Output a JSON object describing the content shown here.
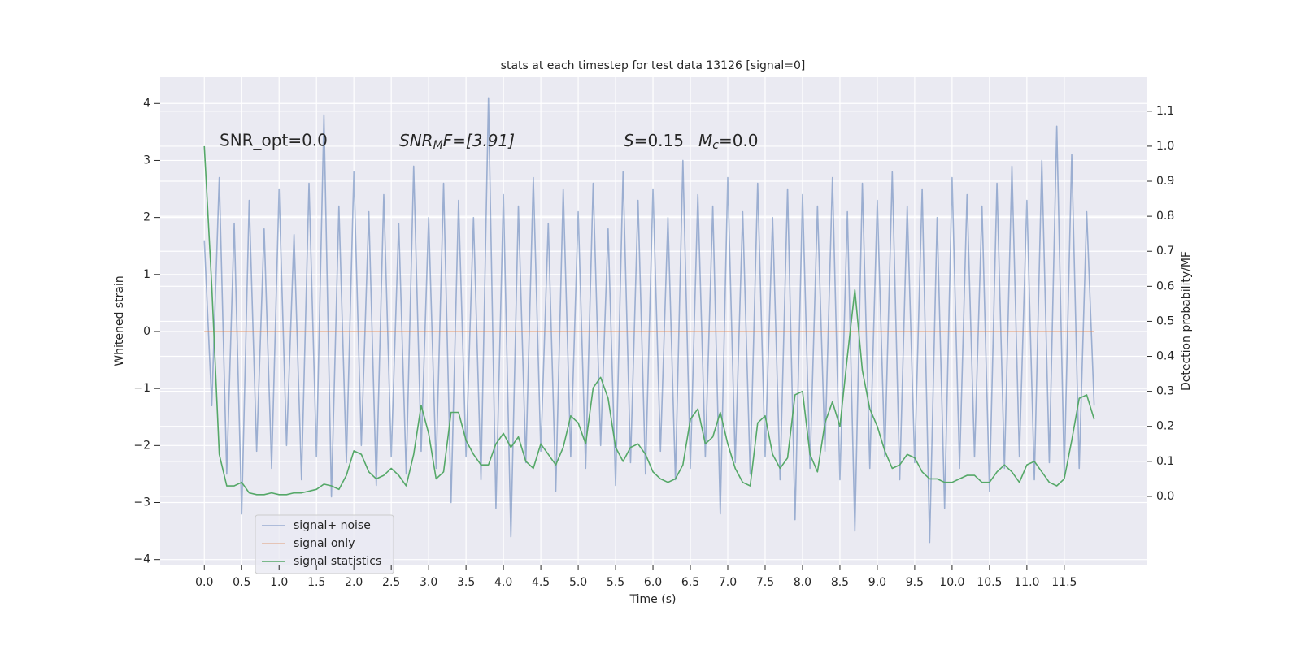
{
  "chart_data": {
    "type": "line",
    "title": "stats at each timestep for test data 13126 [signal=0]",
    "xlabel": "Time (s)",
    "ylabel": "Whitened strain",
    "y2label": "Detection probability/MF",
    "annotations": [
      [
        "SNR_opt=0.0"
      ],
      [
        "SNR",
        "M",
        "F=[3.91]"
      ],
      [
        "S",
        "=0.15"
      ],
      [
        "M",
        "c",
        "=0.0"
      ]
    ],
    "x": [
      0,
      0.1,
      0.2,
      0.3,
      0.4,
      0.5,
      0.6,
      0.7,
      0.8,
      0.9,
      1,
      1.1,
      1.2,
      1.3,
      1.4,
      1.5,
      1.6,
      1.7,
      1.8,
      1.9,
      2,
      2.1,
      2.2,
      2.3,
      2.4,
      2.5,
      2.6,
      2.7,
      2.8,
      2.9,
      3,
      3.1,
      3.2,
      3.3,
      3.4,
      3.5,
      3.6,
      3.7,
      3.8,
      3.9,
      4,
      4.1,
      4.2,
      4.3,
      4.4,
      4.5,
      4.6,
      4.7,
      4.8,
      4.9,
      5,
      5.1,
      5.2,
      5.3,
      5.4,
      5.5,
      5.6,
      5.7,
      5.8,
      5.9,
      6,
      6.1,
      6.2,
      6.3,
      6.4,
      6.5,
      6.6,
      6.7,
      6.8,
      6.9,
      7,
      7.1,
      7.2,
      7.3,
      7.4,
      7.5,
      7.6,
      7.7,
      7.8,
      7.9,
      8,
      8.1,
      8.2,
      8.3,
      8.4,
      8.5,
      8.6,
      8.7,
      8.8,
      8.9,
      9,
      9.1,
      9.2,
      9.3,
      9.4,
      9.5,
      9.6,
      9.7,
      9.8,
      9.9,
      10,
      10.1,
      10.2,
      10.3,
      10.4,
      10.5,
      10.6,
      10.7,
      10.8,
      10.9,
      11,
      11.1,
      11.2,
      11.3,
      11.4,
      11.5,
      11.6,
      11.7,
      11.8,
      11.9
    ],
    "series": [
      {
        "name": "signal+ noise",
        "color": "#4c72b0",
        "alpha": 0.5,
        "axis": "y",
        "values": [
          1.6,
          -1.3,
          2.7,
          -2.5,
          1.9,
          -3.2,
          2.3,
          -2.1,
          1.8,
          -2.4,
          2.5,
          -2.0,
          1.7,
          -2.6,
          2.6,
          -2.2,
          3.8,
          -2.9,
          2.2,
          -2.3,
          2.8,
          -2.0,
          2.1,
          -2.7,
          2.4,
          -2.2,
          1.9,
          -2.5,
          2.9,
          -2.1,
          2.0,
          -2.4,
          2.6,
          -3.0,
          2.3,
          -2.2,
          2.0,
          -2.6,
          4.1,
          -3.1,
          2.4,
          -3.6,
          2.2,
          -2.3,
          2.7,
          -2.1,
          1.9,
          -2.8,
          2.5,
          -2.2,
          2.1,
          -2.4,
          2.6,
          -2.0,
          1.8,
          -2.7,
          2.8,
          -2.3,
          2.3,
          -2.5,
          2.5,
          -2.1,
          2.0,
          -2.6,
          3.0,
          -2.4,
          2.4,
          -2.2,
          2.2,
          -3.2,
          2.7,
          -2.3,
          2.1,
          -2.5,
          2.6,
          -2.2,
          2.0,
          -2.6,
          2.5,
          -3.3,
          2.4,
          -2.4,
          2.2,
          -2.1,
          2.7,
          -2.6,
          2.1,
          -3.5,
          2.6,
          -2.4,
          2.3,
          -2.2,
          2.8,
          -2.6,
          2.2,
          -2.3,
          2.5,
          -3.7,
          2.0,
          -3.1,
          2.7,
          -2.4,
          2.4,
          -2.2,
          2.2,
          -2.8,
          2.6,
          -2.4,
          2.9,
          -2.2,
          2.3,
          -2.6,
          3.0,
          -2.3,
          3.6,
          -2.5,
          3.1,
          -2.4,
          2.1,
          -1.3
        ]
      },
      {
        "name": "signal only",
        "color": "#dd8452",
        "alpha": 0.5,
        "axis": "y",
        "values": [
          0,
          0,
          0,
          0,
          0,
          0,
          0,
          0,
          0,
          0,
          0,
          0,
          0,
          0,
          0,
          0,
          0,
          0,
          0,
          0,
          0,
          0,
          0,
          0,
          0,
          0,
          0,
          0,
          0,
          0,
          0,
          0,
          0,
          0,
          0,
          0,
          0,
          0,
          0,
          0,
          0,
          0,
          0,
          0,
          0,
          0,
          0,
          0,
          0,
          0,
          0,
          0,
          0,
          0,
          0,
          0,
          0,
          0,
          0,
          0,
          0,
          0,
          0,
          0,
          0,
          0,
          0,
          0,
          0,
          0,
          0,
          0,
          0,
          0,
          0,
          0,
          0,
          0,
          0,
          0,
          0,
          0,
          0,
          0,
          0,
          0,
          0,
          0,
          0,
          0,
          0,
          0,
          0,
          0,
          0,
          0,
          0,
          0,
          0,
          0,
          0,
          0,
          0,
          0,
          0,
          0,
          0,
          0,
          0,
          0,
          0,
          0,
          0,
          0,
          0,
          0,
          0,
          0,
          0,
          0
        ]
      },
      {
        "name": "signal statistics",
        "color": "#55a868",
        "alpha": 1,
        "axis": "y2",
        "values": [
          1.0,
          0.6,
          0.12,
          0.03,
          0.03,
          0.04,
          0.01,
          0.005,
          0.005,
          0.01,
          0.005,
          0.005,
          0.01,
          0.01,
          0.015,
          0.02,
          0.035,
          0.03,
          0.02,
          0.06,
          0.13,
          0.12,
          0.07,
          0.05,
          0.06,
          0.08,
          0.06,
          0.03,
          0.12,
          0.26,
          0.18,
          0.05,
          0.07,
          0.24,
          0.24,
          0.16,
          0.12,
          0.09,
          0.09,
          0.15,
          0.18,
          0.14,
          0.17,
          0.1,
          0.08,
          0.15,
          0.12,
          0.09,
          0.14,
          0.23,
          0.21,
          0.15,
          0.31,
          0.34,
          0.28,
          0.14,
          0.1,
          0.14,
          0.15,
          0.12,
          0.07,
          0.05,
          0.04,
          0.05,
          0.09,
          0.22,
          0.25,
          0.15,
          0.17,
          0.24,
          0.15,
          0.08,
          0.04,
          0.03,
          0.21,
          0.23,
          0.12,
          0.08,
          0.11,
          0.29,
          0.3,
          0.12,
          0.07,
          0.21,
          0.27,
          0.2,
          0.4,
          0.59,
          0.36,
          0.25,
          0.2,
          0.13,
          0.08,
          0.09,
          0.12,
          0.11,
          0.07,
          0.05,
          0.05,
          0.04,
          0.04,
          0.05,
          0.06,
          0.06,
          0.04,
          0.04,
          0.07,
          0.09,
          0.07,
          0.04,
          0.09,
          0.1,
          0.07,
          0.04,
          0.03,
          0.05,
          0.16,
          0.28,
          0.29,
          0.22
        ]
      }
    ],
    "xlim": [
      -0.59,
      12.6
    ],
    "xticks": [
      {
        "value": 0,
        "label": "0.0"
      },
      0.5,
      {
        "value": 1,
        "label": "1.0"
      },
      1.5,
      {
        "value": 2,
        "label": "2.0"
      },
      2.5,
      {
        "value": 3,
        "label": "3.0"
      },
      3.5,
      {
        "value": 4,
        "label": "4.0"
      },
      4.5,
      {
        "value": 5,
        "label": "5.0"
      },
      5.5,
      {
        "value": 6,
        "label": "6.0"
      },
      6.5,
      {
        "value": 7,
        "label": "7.0"
      },
      7.5,
      {
        "value": 8,
        "label": "8.0"
      },
      8.5,
      {
        "value": 9,
        "label": "9.0"
      },
      9.5,
      {
        "value": 10,
        "label": "10.0"
      },
      10.5,
      {
        "value": 11,
        "label": "11.0"
      },
      11.5
    ],
    "ylim": [
      -4.09,
      4.46
    ],
    "yticks": [
      {
        "value": -4,
        "label": "−4"
      },
      {
        "value": -3,
        "label": "−3"
      },
      {
        "value": -2,
        "label": "−2"
      },
      {
        "value": -1,
        "label": "−1"
      },
      0,
      1,
      2,
      3,
      4
    ],
    "y2lim": [
      -0.195,
      1.197
    ],
    "y2ticks": [
      {
        "value": 0,
        "label": "0.0"
      },
      0.1,
      0.2,
      0.3,
      0.4,
      0.5,
      0.6,
      0.7,
      0.8,
      0.9,
      {
        "value": 1,
        "label": "1.0"
      },
      1.1
    ],
    "grid": true,
    "background": "#eaeaf2",
    "legend_loc": "lower left"
  }
}
